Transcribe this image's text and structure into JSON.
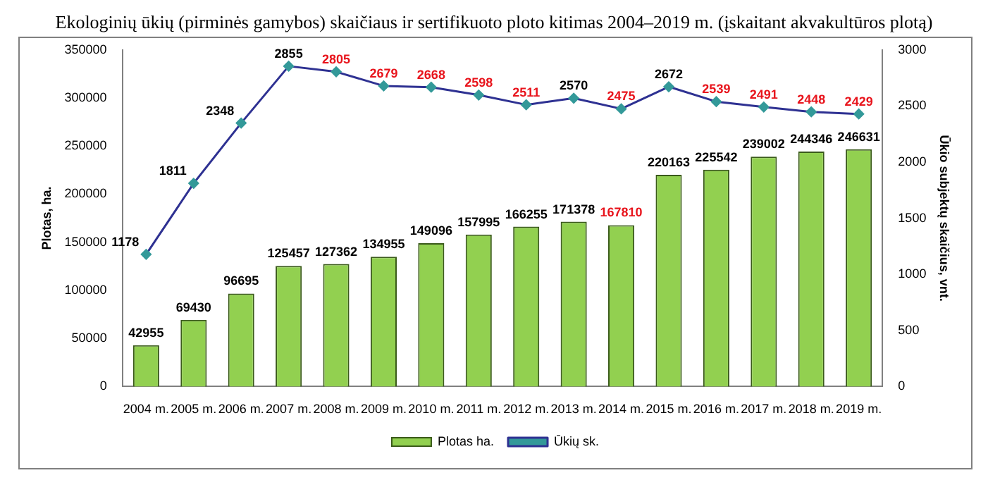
{
  "chart_data": {
    "type": "bar",
    "title": "Ekologinių ūkių (pirminės gamybos) skaičiaus ir sertifikuoto ploto kitimas 2004–2019 m. (įskaitant akvakultūros plotą)",
    "ylabel": "Plotas, ha.",
    "y2label": "Ūkio subjektų skaičius, vnt.",
    "categories": [
      "2004 m.",
      "2005 m.",
      "2006 m.",
      "2007 m.",
      "2008 m.",
      "2009 m.",
      "2010 m.",
      "2011 m.",
      "2012 m.",
      "2013 m.",
      "2014 m.",
      "2015 m.",
      "2016 m.",
      "2017 m.",
      "2018 m.",
      "2019 m."
    ],
    "series": [
      {
        "name": "Plotas ha.",
        "color": "#92d050",
        "values": [
          42955,
          69430,
          96695,
          125457,
          127362,
          134955,
          149096,
          157995,
          166255,
          171378,
          167810,
          220163,
          225542,
          239002,
          244346,
          246631
        ]
      },
      {
        "name": "Ūkių sk.",
        "type": "line",
        "axis": "y2",
        "color": "#2e3192",
        "values": [
          1178,
          1811,
          2348,
          2855,
          2805,
          2679,
          2668,
          2598,
          2511,
          2570,
          2475,
          2672,
          2539,
          2491,
          2448,
          2429
        ]
      }
    ],
    "ylim": [
      0,
      350000
    ],
    "yticks": [
      0,
      50000,
      100000,
      150000,
      200000,
      250000,
      300000,
      350000
    ],
    "y2lim": [
      0,
      3000
    ],
    "y2ticks": [
      0,
      500,
      1000,
      1500,
      2000,
      2500,
      3000
    ],
    "grid": false,
    "legend": "bottom",
    "marker": "diamond",
    "line_style": "solid",
    "data_labels": true
  }
}
